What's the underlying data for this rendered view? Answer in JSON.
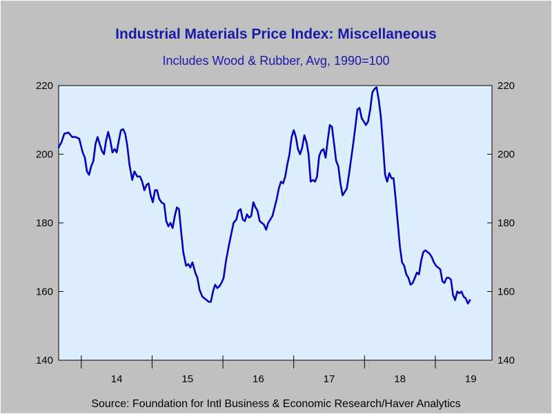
{
  "colors": {
    "background": "#c0c0c0",
    "plot_background": "#ddeeff",
    "line": "#0000c0",
    "title": "#1a1aa8"
  },
  "header": {
    "title": "Industrial Materials Price Index: Miscellaneous",
    "subtitle": "Includes Wood & Rubber, Avg, 1990=100"
  },
  "footer": {
    "source": "Source:  Foundation for Intl Business & Economic Research/Haver Analytics"
  },
  "chart_data": {
    "type": "line",
    "title": "Industrial Materials Price Index: Miscellaneous",
    "subtitle": "Includes Wood & Rubber, Avg, 1990=100",
    "xlabel": "",
    "ylabel": "",
    "xlim": [
      2013.68,
      2019.8
    ],
    "ylim": [
      140,
      220
    ],
    "y_ticks": [
      140,
      160,
      180,
      200,
      220
    ],
    "x_tick_labels": [
      {
        "label": "14",
        "x": 2014.5
      },
      {
        "label": "15",
        "x": 2015.5
      },
      {
        "label": "16",
        "x": 2016.5
      },
      {
        "label": "17",
        "x": 2017.5
      },
      {
        "label": "18",
        "x": 2018.5
      },
      {
        "label": "19",
        "x": 2019.5
      }
    ],
    "x_year_ticks": [
      2014,
      2015,
      2016,
      2017,
      2018,
      2019
    ],
    "grid": false,
    "legend": "none",
    "series": [
      {
        "points": [
          [
            2013.68,
            202.0
          ],
          [
            2013.72,
            203.5
          ],
          [
            2013.76,
            206.0
          ],
          [
            2013.82,
            206.3
          ],
          [
            2013.87,
            205.0
          ],
          [
            2013.92,
            205.0
          ],
          [
            2013.97,
            204.5
          ],
          [
            2014.02,
            200.5
          ],
          [
            2014.05,
            199.0
          ],
          [
            2014.08,
            195.0
          ],
          [
            2014.11,
            194.0
          ],
          [
            2014.14,
            196.5
          ],
          [
            2014.17,
            198.0
          ],
          [
            2014.2,
            203.0
          ],
          [
            2014.23,
            205.0
          ],
          [
            2014.26,
            203.0
          ],
          [
            2014.29,
            201.0
          ],
          [
            2014.32,
            200.0
          ],
          [
            2014.35,
            204.0
          ],
          [
            2014.38,
            206.5
          ],
          [
            2014.41,
            204.0
          ],
          [
            2014.44,
            200.5
          ],
          [
            2014.47,
            201.5
          ],
          [
            2014.5,
            200.5
          ],
          [
            2014.53,
            204.0
          ],
          [
            2014.56,
            207.0
          ],
          [
            2014.59,
            207.3
          ],
          [
            2014.62,
            206.0
          ],
          [
            2014.65,
            202.5
          ],
          [
            2014.68,
            197.0
          ],
          [
            2014.72,
            192.5
          ],
          [
            2014.75,
            195.0
          ],
          [
            2014.79,
            193.5
          ],
          [
            2014.83,
            193.5
          ],
          [
            2014.86,
            192.0
          ],
          [
            2014.89,
            189.5
          ],
          [
            2014.92,
            191.0
          ],
          [
            2014.95,
            191.5
          ],
          [
            2014.98,
            188.0
          ],
          [
            2015.01,
            186.0
          ],
          [
            2015.04,
            189.5
          ],
          [
            2015.07,
            189.5
          ],
          [
            2015.1,
            187.0
          ],
          [
            2015.13,
            186.0
          ],
          [
            2015.17,
            185.5
          ],
          [
            2015.2,
            180.5
          ],
          [
            2015.23,
            179.0
          ],
          [
            2015.26,
            180.0
          ],
          [
            2015.29,
            178.5
          ],
          [
            2015.32,
            182.0
          ],
          [
            2015.35,
            184.5
          ],
          [
            2015.38,
            184.0
          ],
          [
            2015.41,
            177.5
          ],
          [
            2015.44,
            171.5
          ],
          [
            2015.48,
            167.5
          ],
          [
            2015.51,
            168.0
          ],
          [
            2015.54,
            167.0
          ],
          [
            2015.57,
            168.5
          ],
          [
            2015.61,
            165.5
          ],
          [
            2015.64,
            164.0
          ],
          [
            2015.67,
            160.5
          ],
          [
            2015.71,
            158.5
          ],
          [
            2015.74,
            158.0
          ],
          [
            2015.77,
            157.5
          ],
          [
            2015.8,
            157.0
          ],
          [
            2015.83,
            157.0
          ],
          [
            2015.86,
            160.0
          ],
          [
            2015.89,
            162.0
          ],
          [
            2015.92,
            161.0
          ],
          [
            2015.95,
            161.5
          ],
          [
            2015.98,
            162.5
          ],
          [
            2016.01,
            164.0
          ],
          [
            2016.04,
            168.5
          ],
          [
            2016.08,
            173.0
          ],
          [
            2016.12,
            177.0
          ],
          [
            2016.15,
            180.0
          ],
          [
            2016.19,
            181.0
          ],
          [
            2016.22,
            183.5
          ],
          [
            2016.25,
            184.0
          ],
          [
            2016.28,
            181.0
          ],
          [
            2016.31,
            180.5
          ],
          [
            2016.34,
            182.5
          ],
          [
            2016.37,
            181.5
          ],
          [
            2016.4,
            182.0
          ],
          [
            2016.43,
            186.0
          ],
          [
            2016.46,
            184.5
          ],
          [
            2016.49,
            183.5
          ],
          [
            2016.52,
            180.5
          ],
          [
            2016.55,
            180.0
          ],
          [
            2016.58,
            179.5
          ],
          [
            2016.61,
            178.0
          ],
          [
            2016.64,
            180.0
          ],
          [
            2016.67,
            181.0
          ],
          [
            2016.7,
            182.0
          ],
          [
            2016.73,
            184.5
          ],
          [
            2016.76,
            187.0
          ],
          [
            2016.79,
            190.0
          ],
          [
            2016.82,
            192.0
          ],
          [
            2016.85,
            191.5
          ],
          [
            2016.88,
            193.5
          ],
          [
            2016.91,
            197.0
          ],
          [
            2016.94,
            200.0
          ],
          [
            2016.97,
            205.0
          ],
          [
            2017.0,
            207.0
          ],
          [
            2017.03,
            205.0
          ],
          [
            2017.06,
            201.5
          ],
          [
            2017.09,
            200.0
          ],
          [
            2017.12,
            202.0
          ],
          [
            2017.15,
            205.5
          ],
          [
            2017.18,
            203.5
          ],
          [
            2017.21,
            200.0
          ],
          [
            2017.24,
            192.0
          ],
          [
            2017.27,
            192.5
          ],
          [
            2017.3,
            192.0
          ],
          [
            2017.33,
            193.5
          ],
          [
            2017.36,
            199.5
          ],
          [
            2017.39,
            201.0
          ],
          [
            2017.42,
            201.5
          ],
          [
            2017.45,
            199.0
          ],
          [
            2017.48,
            204.0
          ],
          [
            2017.51,
            208.5
          ],
          [
            2017.54,
            208.0
          ],
          [
            2017.57,
            203.0
          ],
          [
            2017.6,
            198.0
          ],
          [
            2017.63,
            196.5
          ],
          [
            2017.66,
            191.5
          ],
          [
            2017.69,
            188.0
          ],
          [
            2017.72,
            189.0
          ],
          [
            2017.75,
            190.0
          ],
          [
            2017.78,
            194.0
          ],
          [
            2017.81,
            198.5
          ],
          [
            2017.84,
            203.0
          ],
          [
            2017.87,
            208.0
          ],
          [
            2017.9,
            213.0
          ],
          [
            2017.93,
            213.5
          ],
          [
            2017.96,
            210.5
          ],
          [
            2017.99,
            209.5
          ],
          [
            2018.02,
            208.5
          ],
          [
            2018.05,
            209.5
          ],
          [
            2018.08,
            213.0
          ],
          [
            2018.11,
            218.0
          ],
          [
            2018.14,
            219.0
          ],
          [
            2018.17,
            219.5
          ],
          [
            2018.2,
            216.0
          ],
          [
            2018.23,
            211.0
          ],
          [
            2018.26,
            203.0
          ],
          [
            2018.29,
            194.0
          ],
          [
            2018.32,
            192.0
          ],
          [
            2018.35,
            194.5
          ],
          [
            2018.38,
            193.0
          ],
          [
            2018.41,
            193.0
          ],
          [
            2018.44,
            187.0
          ],
          [
            2018.47,
            180.0
          ],
          [
            2018.5,
            173.0
          ],
          [
            2018.53,
            168.5
          ],
          [
            2018.56,
            167.5
          ],
          [
            2018.59,
            165.0
          ],
          [
            2018.62,
            164.0
          ],
          [
            2018.65,
            162.0
          ],
          [
            2018.68,
            162.5
          ],
          [
            2018.71,
            164.0
          ],
          [
            2018.74,
            165.5
          ],
          [
            2018.77,
            165.0
          ],
          [
            2018.8,
            169.0
          ],
          [
            2018.83,
            171.5
          ],
          [
            2018.86,
            172.0
          ],
          [
            2018.89,
            171.5
          ],
          [
            2018.92,
            171.0
          ],
          [
            2018.95,
            170.0
          ],
          [
            2018.98,
            168.5
          ],
          [
            2019.01,
            167.5
          ],
          [
            2019.04,
            167.0
          ],
          [
            2019.07,
            166.5
          ],
          [
            2019.1,
            163.0
          ],
          [
            2019.13,
            162.5
          ],
          [
            2019.16,
            164.0
          ],
          [
            2019.19,
            164.0
          ],
          [
            2019.22,
            163.5
          ],
          [
            2019.25,
            159.0
          ],
          [
            2019.28,
            157.5
          ],
          [
            2019.31,
            160.0
          ],
          [
            2019.34,
            159.5
          ],
          [
            2019.37,
            160.0
          ],
          [
            2019.4,
            158.5
          ],
          [
            2019.43,
            158.0
          ],
          [
            2019.46,
            156.5
          ],
          [
            2019.49,
            157.5
          ]
        ]
      }
    ]
  }
}
